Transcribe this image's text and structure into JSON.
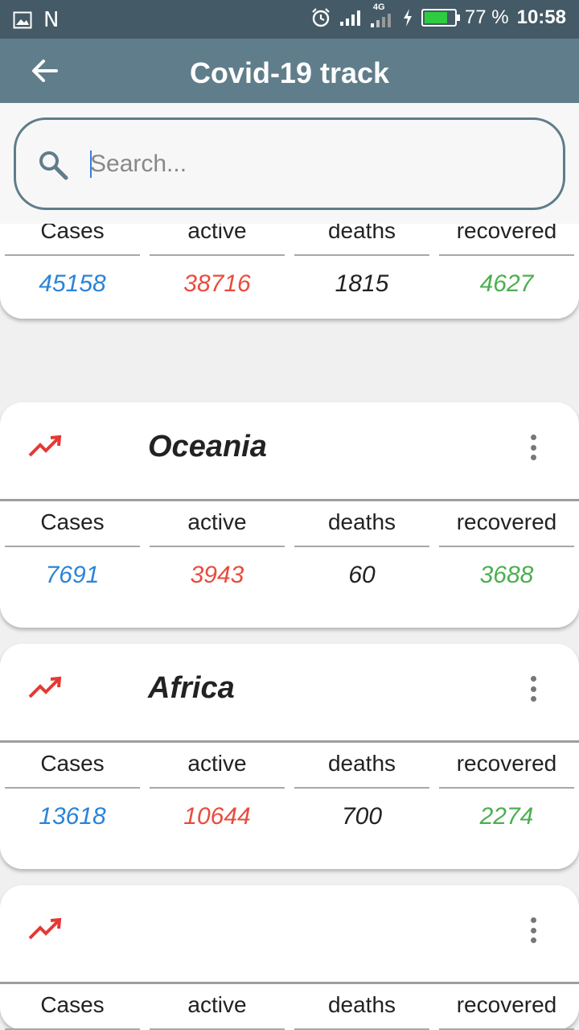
{
  "status_bar": {
    "network_letter": "N",
    "network_type": "4G",
    "battery_percent": "77 %",
    "battery_level": 0.77,
    "time": "10:58"
  },
  "app_bar": {
    "title": "Covid-19 track"
  },
  "search": {
    "placeholder": "Search...",
    "value": ""
  },
  "stat_labels": {
    "cases": "Cases",
    "active": "active",
    "deaths": "deaths",
    "recovered": "recovered"
  },
  "cards": [
    {
      "name": "",
      "cases": "45158",
      "active": "38716",
      "deaths": "1815",
      "recovered": "4627"
    },
    {
      "name": "Oceania",
      "cases": "7691",
      "active": "3943",
      "deaths": "60",
      "recovered": "3688"
    },
    {
      "name": "Africa",
      "cases": "13618",
      "active": "10644",
      "deaths": "700",
      "recovered": "2274"
    },
    {
      "name": ""
    }
  ],
  "colors": {
    "app_bar": "#607d8b",
    "status_bar": "#445a66",
    "cases": "#2a84d8",
    "active": "#e84c3d",
    "recovered": "#4caf50",
    "trend_icon": "#e53935"
  }
}
